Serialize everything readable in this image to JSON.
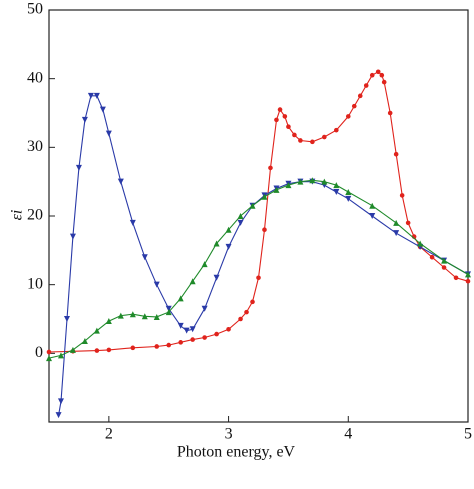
{
  "chart_data": {
    "type": "line",
    "xlabel": "Photon energy, eV",
    "ylabel": "εi",
    "xlim": [
      1.5,
      5
    ],
    "xticks": [
      2,
      3,
      4,
      5
    ],
    "ylim": [
      -10,
      50
    ],
    "yticks": [
      0,
      10,
      20,
      30,
      40,
      50
    ],
    "series": [
      {
        "color": "#e0231c",
        "marker": "circle",
        "x": [
          1.5,
          1.7,
          1.9,
          2.0,
          2.2,
          2.4,
          2.5,
          2.6,
          2.7,
          2.8,
          2.9,
          3.0,
          3.1,
          3.15,
          3.2,
          3.25,
          3.3,
          3.35,
          3.4,
          3.43,
          3.47,
          3.5,
          3.55,
          3.6,
          3.7,
          3.8,
          3.9,
          4.0,
          4.05,
          4.1,
          4.15,
          4.2,
          4.25,
          4.28,
          4.3,
          4.35,
          4.4,
          4.45,
          4.5,
          4.55,
          4.6,
          4.7,
          4.8,
          4.9,
          5.0
        ],
        "values": [
          0.2,
          0.3,
          0.4,
          0.5,
          0.8,
          1.0,
          1.2,
          1.6,
          2.0,
          2.3,
          2.8,
          3.5,
          5.0,
          6.0,
          7.5,
          11,
          18,
          27,
          34,
          35.5,
          34.5,
          33,
          31.8,
          31,
          30.8,
          31.5,
          32.5,
          34.5,
          36,
          37.5,
          39,
          40.5,
          41,
          40.5,
          39.5,
          35,
          29,
          23,
          19,
          17,
          15.5,
          14,
          12.5,
          11,
          10.5
        ]
      },
      {
        "color": "#2a3aa8",
        "marker": "triangle-down",
        "x": [
          1.58,
          1.6,
          1.65,
          1.7,
          1.75,
          1.8,
          1.85,
          1.9,
          1.95,
          2.0,
          2.1,
          2.2,
          2.3,
          2.4,
          2.5,
          2.6,
          2.65,
          2.7,
          2.8,
          2.9,
          3.0,
          3.1,
          3.2,
          3.3,
          3.4,
          3.5,
          3.6,
          3.7,
          3.8,
          3.9,
          4.0,
          4.2,
          4.4,
          4.6,
          4.8,
          5.0
        ],
        "values": [
          -9,
          -7,
          5,
          17,
          27,
          34,
          37.5,
          37.5,
          35.5,
          32,
          25,
          19,
          14,
          10,
          6.5,
          4,
          3.3,
          3.5,
          6.5,
          11,
          15.5,
          19,
          21.5,
          23,
          24,
          24.7,
          25,
          25,
          24.5,
          23.5,
          22.5,
          20,
          17.5,
          15.5,
          13.5,
          11.5
        ]
      },
      {
        "color": "#1f8a2a",
        "marker": "triangle-up",
        "x": [
          1.5,
          1.6,
          1.7,
          1.8,
          1.9,
          2.0,
          2.1,
          2.2,
          2.3,
          2.4,
          2.5,
          2.6,
          2.7,
          2.8,
          2.9,
          3.0,
          3.1,
          3.2,
          3.3,
          3.4,
          3.5,
          3.6,
          3.7,
          3.8,
          3.9,
          4.0,
          4.2,
          4.4,
          4.6,
          4.8,
          5.0
        ],
        "values": [
          -0.7,
          -0.3,
          0.5,
          1.8,
          3.3,
          4.7,
          5.5,
          5.7,
          5.4,
          5.3,
          6,
          8,
          10.5,
          13,
          16,
          18,
          20,
          21.5,
          22.8,
          23.8,
          24.5,
          25,
          25.2,
          25,
          24.5,
          23.5,
          21.5,
          19,
          16,
          13.5,
          11.5
        ]
      }
    ]
  }
}
